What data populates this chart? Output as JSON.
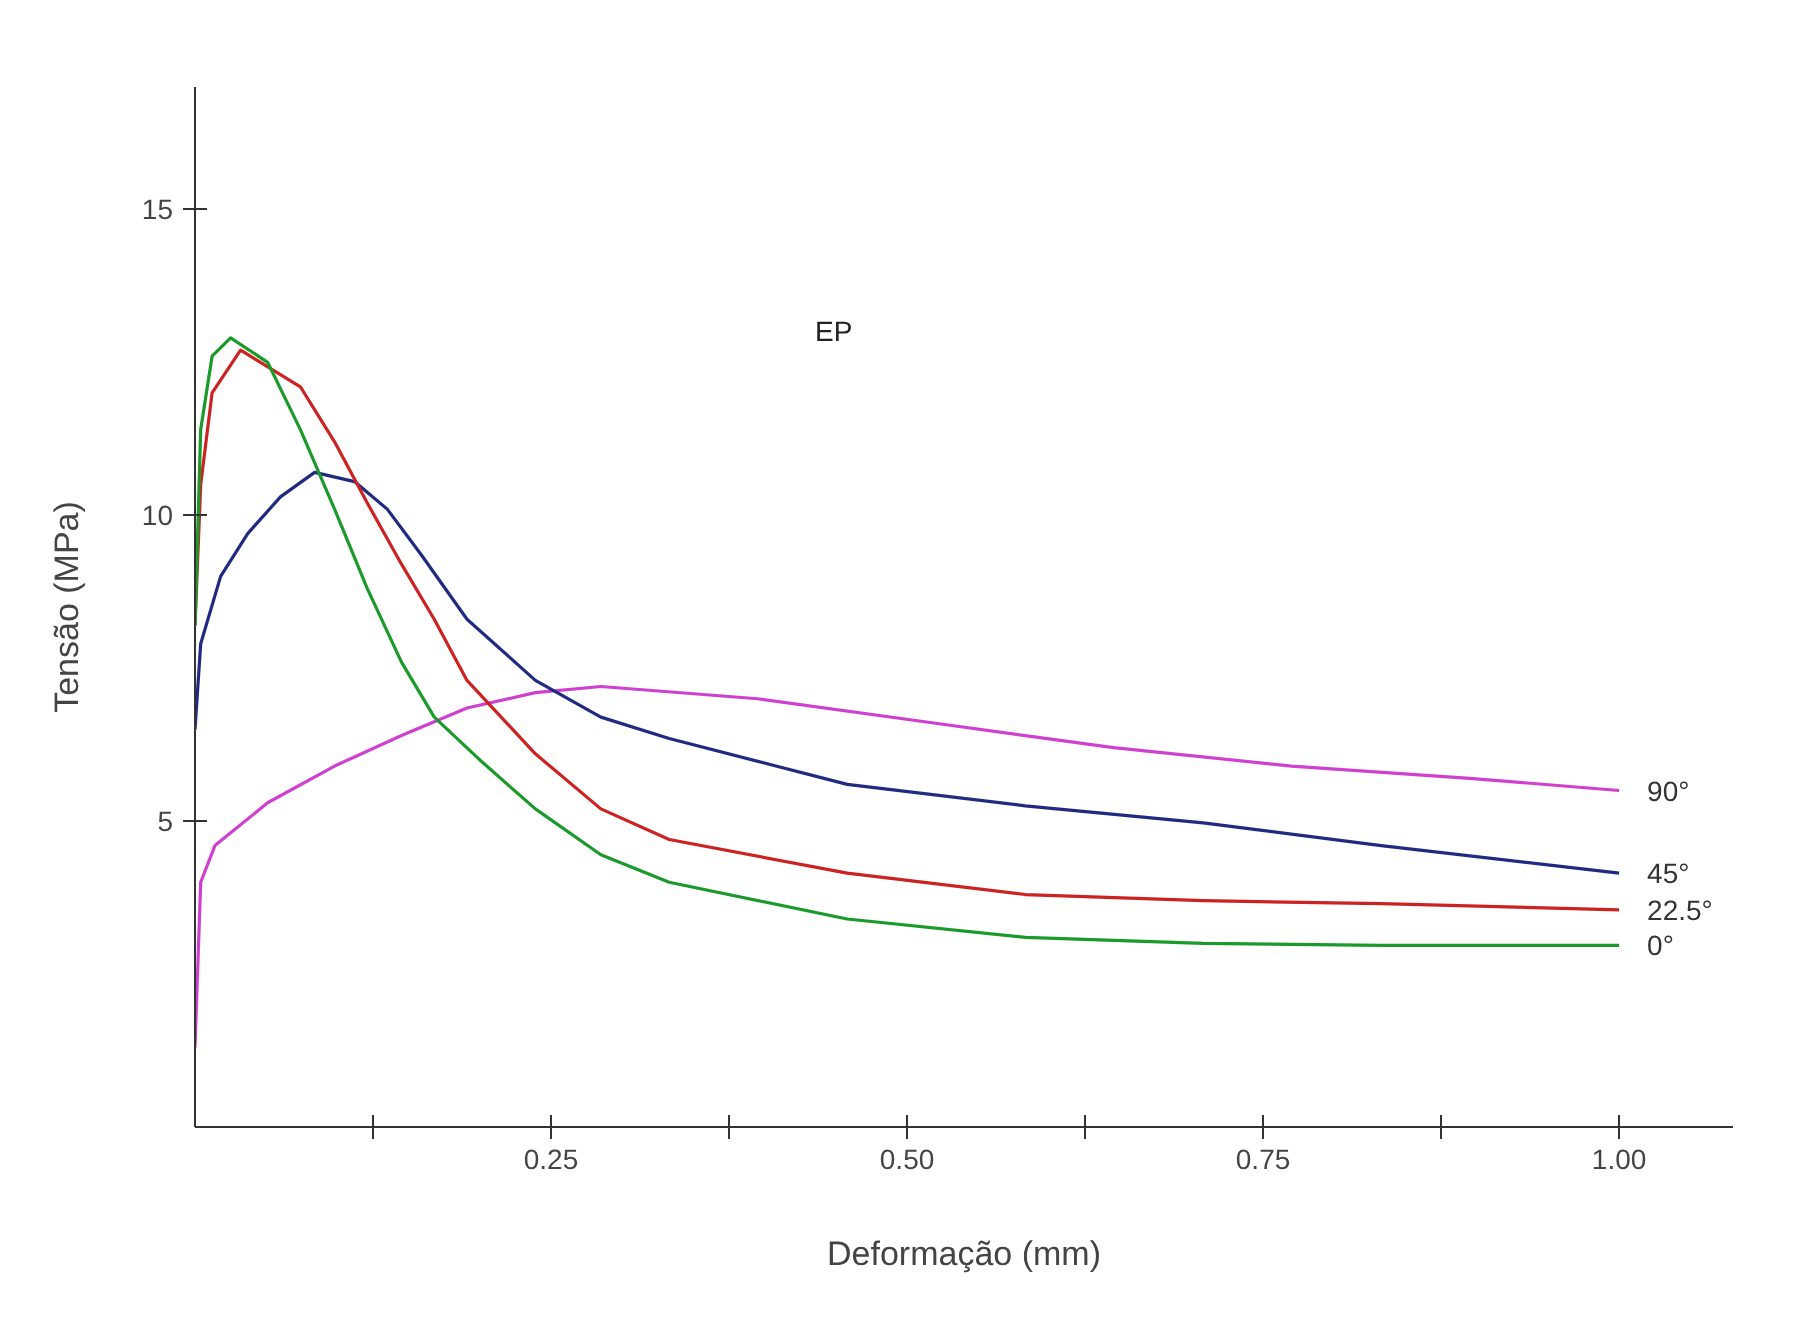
{
  "chart_data": {
    "type": "line",
    "xlabel": "Deformação (mm)",
    "ylabel": "Tensão (MPa)",
    "annotations": [
      "EP"
    ],
    "xlim": [
      0,
      1.08
    ],
    "ylim": [
      0,
      17
    ],
    "xticks": [
      {
        "value": 0.125,
        "label": null
      },
      0.25,
      {
        "value": 0.375,
        "label": null
      },
      {
        "value": 0.5,
        "label": "0.50"
      },
      {
        "value": 0.625,
        "label": null
      },
      0.75,
      {
        "value": 0.875,
        "label": null
      },
      {
        "value": 1.0,
        "label": "1.00"
      }
    ],
    "yticks": [
      5,
      10,
      15
    ],
    "grid": false,
    "marker": "none",
    "line_style": "solid",
    "series": [
      {
        "name": "90°",
        "color": "#d040d0",
        "x": [
          0,
          0.004,
          0.014,
          0.051,
          0.098,
          0.145,
          0.191,
          0.239,
          0.285,
          0.395,
          0.52,
          0.645,
          0.77,
          0.895,
          1.0
        ],
        "values": [
          1.3,
          4.0,
          4.6,
          5.3,
          5.9,
          6.4,
          6.85,
          7.1,
          7.2,
          7.0,
          6.6,
          6.2,
          5.9,
          5.7,
          5.5
        ]
      },
      {
        "name": "45°",
        "color": "#1f2a80",
        "x": [
          0,
          0.004,
          0.018,
          0.037,
          0.06,
          0.084,
          0.112,
          0.135,
          0.159,
          0.191,
          0.239,
          0.285,
          0.333,
          0.458,
          0.583,
          0.708,
          0.833,
          1.0
        ],
        "values": [
          6.5,
          7.9,
          9.0,
          9.7,
          10.3,
          10.7,
          10.55,
          10.1,
          9.35,
          8.3,
          7.3,
          6.7,
          6.35,
          5.6,
          5.25,
          4.97,
          4.6,
          4.15
        ]
      },
      {
        "name": "22.5°",
        "color": "#cc2222",
        "x": [
          0,
          0.004,
          0.012,
          0.032,
          0.074,
          0.098,
          0.121,
          0.145,
          0.168,
          0.191,
          0.239,
          0.285,
          0.333,
          0.458,
          0.583,
          0.708,
          0.833,
          1.0
        ],
        "values": [
          8.2,
          10.5,
          12.0,
          12.7,
          12.1,
          11.2,
          10.2,
          9.2,
          8.3,
          7.3,
          6.1,
          5.2,
          4.7,
          4.15,
          3.8,
          3.7,
          3.65,
          3.55
        ]
      },
      {
        "name": "0°",
        "color": "#1a9a2a",
        "x": [
          0,
          0.004,
          0.012,
          0.025,
          0.051,
          0.074,
          0.098,
          0.121,
          0.145,
          0.168,
          0.2,
          0.239,
          0.285,
          0.333,
          0.458,
          0.583,
          0.708,
          0.833,
          1.0
        ],
        "values": [
          8.2,
          11.4,
          12.6,
          12.9,
          12.5,
          11.4,
          10.1,
          8.8,
          7.6,
          6.7,
          6.0,
          5.2,
          4.45,
          4.0,
          3.4,
          3.1,
          3.0,
          2.97,
          2.97
        ]
      }
    ]
  }
}
